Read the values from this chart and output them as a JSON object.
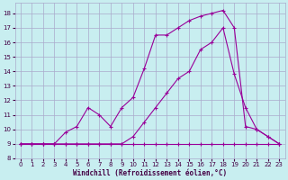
{
  "bg_color": "#c8eef0",
  "grid_color": "#aaaacc",
  "line_color": "#990099",
  "xlabel": "Windchill (Refroidissement éolien,°C)",
  "xlim": [
    -0.5,
    23.5
  ],
  "ylim": [
    8.0,
    18.7
  ],
  "yticks": [
    8,
    9,
    10,
    11,
    12,
    13,
    14,
    15,
    16,
    17,
    18
  ],
  "xticks": [
    0,
    1,
    2,
    3,
    4,
    5,
    6,
    7,
    8,
    9,
    10,
    11,
    12,
    13,
    14,
    15,
    16,
    17,
    18,
    19,
    20,
    21,
    22,
    23
  ],
  "line1_x": [
    0,
    1,
    2,
    3,
    4,
    5,
    6,
    7,
    8,
    9,
    10,
    11,
    12,
    13,
    14,
    15,
    16,
    17,
    18,
    19,
    20,
    21,
    22,
    23
  ],
  "line1_y": [
    9,
    9,
    9,
    9,
    9,
    9,
    9,
    9,
    9,
    9,
    9,
    9,
    9,
    9,
    9,
    9,
    9,
    9,
    9,
    9,
    9,
    9,
    9,
    9
  ],
  "line2_x": [
    0,
    1,
    2,
    3,
    4,
    5,
    6,
    7,
    8,
    9,
    10,
    11,
    12,
    13,
    14,
    15,
    16,
    17,
    18,
    19,
    20,
    21,
    22,
    23
  ],
  "line2_y": [
    9,
    9,
    9,
    9,
    9.8,
    10.2,
    11.5,
    11,
    10.2,
    11.5,
    12.2,
    14.2,
    16.5,
    16.5,
    17.0,
    17.5,
    17.8,
    18.0,
    18.2,
    17.0,
    10.2,
    10.0,
    9.5,
    9.0
  ],
  "line3_x": [
    0,
    1,
    2,
    3,
    4,
    5,
    6,
    7,
    8,
    9,
    10,
    11,
    12,
    13,
    14,
    15,
    16,
    17,
    18,
    19,
    20,
    21,
    22,
    23
  ],
  "line3_y": [
    9,
    9,
    9,
    9,
    9,
    9,
    9,
    9,
    9,
    9,
    9.5,
    10.5,
    11.5,
    12.5,
    13.5,
    14.0,
    15.5,
    16.0,
    17.0,
    13.8,
    11.5,
    10.0,
    9.5,
    9.0
  ]
}
